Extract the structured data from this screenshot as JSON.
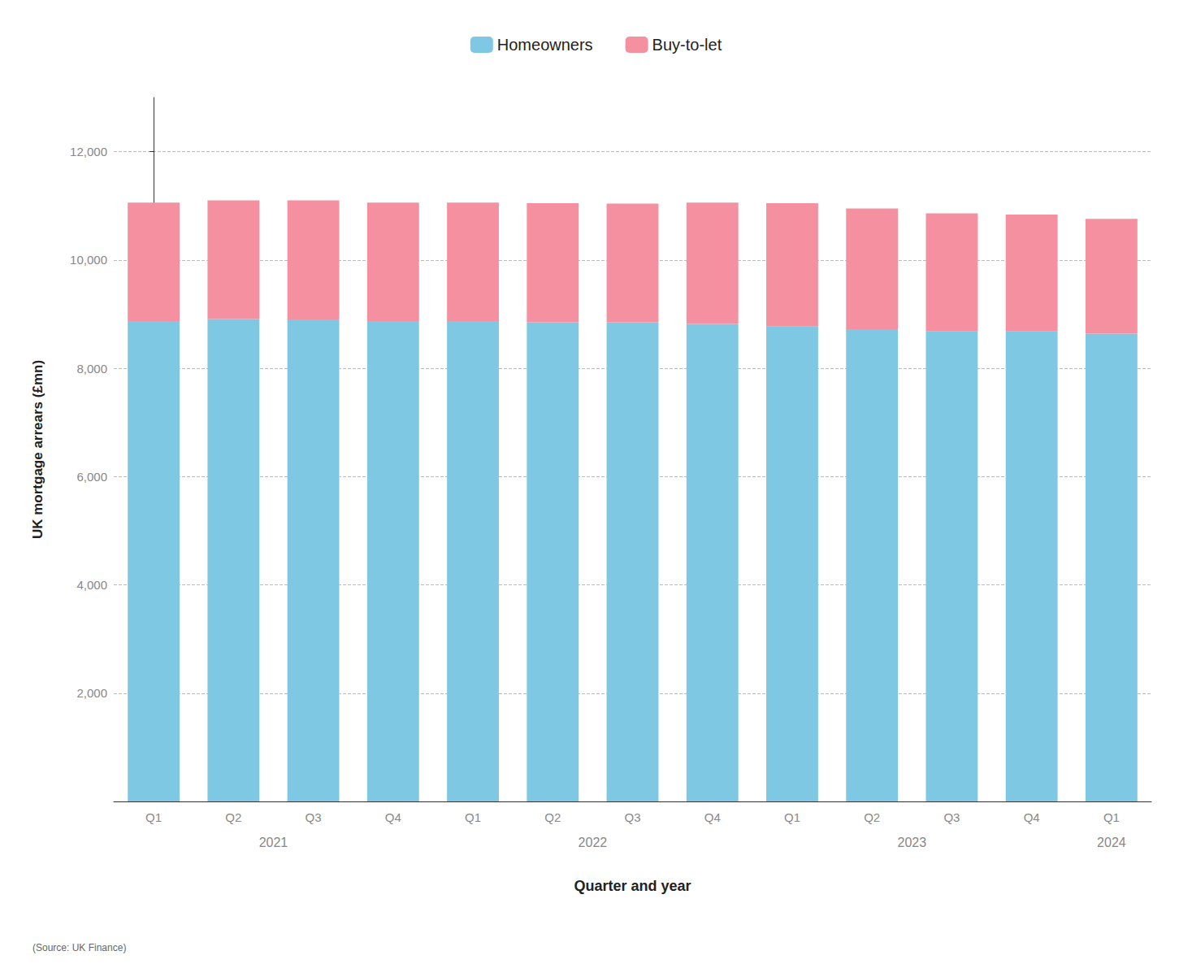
{
  "chart_data": {
    "type": "bar",
    "stacked": true,
    "categories": [
      "Q1",
      "Q2",
      "Q3",
      "Q4",
      "Q1",
      "Q2",
      "Q3",
      "Q4",
      "Q1",
      "Q2",
      "Q3",
      "Q4",
      "Q1"
    ],
    "category_groups": [
      "2021",
      "2021",
      "2021",
      "2021",
      "2022",
      "2022",
      "2022",
      "2022",
      "2023",
      "2023",
      "2023",
      "2023",
      "2024"
    ],
    "series": [
      {
        "name": "Homeowners",
        "color": "#7EC8E3",
        "values": [
          8870,
          8910,
          8900,
          8870,
          8870,
          8850,
          8850,
          8820,
          8770,
          8720,
          8680,
          8680,
          8640
        ]
      },
      {
        "name": "Buy-to-let",
        "color": "#F4909F",
        "values": [
          2190,
          2190,
          2200,
          2190,
          2190,
          2200,
          2190,
          2240,
          2280,
          2230,
          2180,
          2160,
          2120
        ]
      }
    ],
    "ylabel": "UK mortgage arrears (£mn)",
    "xlabel": "Quarter and year",
    "source": "(Source: UK Finance)",
    "ylim": [
      0,
      13000
    ],
    "yticks": [
      {
        "value": 0,
        "label": ""
      },
      {
        "value": 2000,
        "label": "2,000"
      },
      {
        "value": 4000,
        "label": "4,000"
      },
      {
        "value": 6000,
        "label": "6,000"
      },
      {
        "value": 8000,
        "label": "8,000"
      },
      {
        "value": 10000,
        "label": "10,000"
      },
      {
        "value": 12000,
        "label": "12,000"
      }
    ],
    "grid": true,
    "legend": "top"
  }
}
